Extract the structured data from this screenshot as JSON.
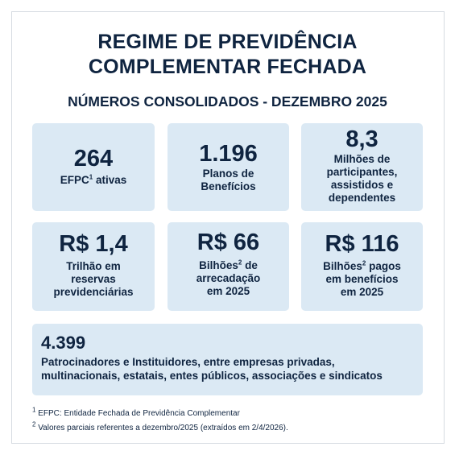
{
  "title": {
    "line1": "REGIME DE PREVIDÊNCIA",
    "line2": "COMPLEMENTAR FECHADA"
  },
  "subtitle": "NÚMEROS CONSOLIDADOS - DEZEMBRO 2025",
  "cards": [
    {
      "value": "264",
      "label_lines": [
        "EFPC",
        "ativas"
      ],
      "label_sup": "1"
    },
    {
      "value": "1.196",
      "label_lines": [
        "Planos de",
        "Benefícios"
      ]
    },
    {
      "value": "8,3",
      "label_lines": [
        "Milhões de",
        "participantes,",
        "assistidos e",
        "dependentes"
      ]
    },
    {
      "value": "R$ 1,4",
      "label_lines": [
        "Trilhão em",
        "reservas",
        "previdenciárias"
      ]
    },
    {
      "value": "R$ 66",
      "label_lines": [
        "Bilhões",
        "de",
        "arrecadação",
        "em 2025"
      ],
      "label_sup": "2"
    },
    {
      "value": "R$ 116",
      "label_lines": [
        "Bilhões",
        "pagos",
        "em benefícios",
        "em 2025"
      ],
      "label_sup": "2"
    }
  ],
  "wide_card": {
    "value": "4.399",
    "line1": "Patrocinadores e Instituidores, entre empresas privadas,",
    "line2": "multinacionais, estatais, entes públicos, associações e sindicatos"
  },
  "footnotes": [
    {
      "marker": "1",
      "text": "EFPC: Entidade Fechada de Previdência Complementar"
    },
    {
      "marker": "2",
      "text": "Valores parciais referentes a dezembro/2025 (extraídos em 2/4/2026)."
    }
  ],
  "colors": {
    "text": "#0f2440",
    "card_background": "#dbe9f4",
    "border": "#d6dbe1"
  }
}
